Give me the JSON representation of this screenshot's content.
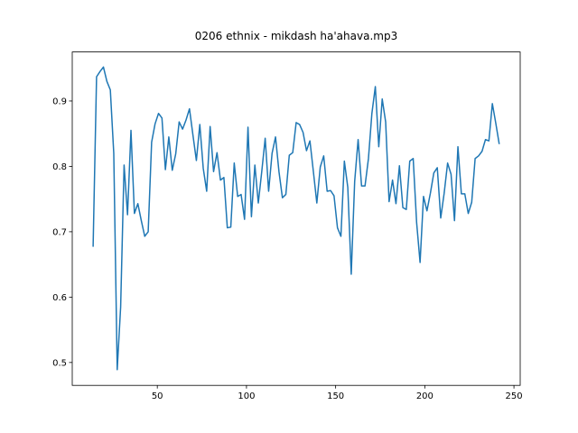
{
  "chart_data": {
    "type": "line",
    "title": "0206 ethnix - mikdash ha'ahava.mp3",
    "color": "#1f77b4",
    "x": [
      14,
      15.93,
      17.86,
      19.79,
      21.72,
      23.65,
      25.58,
      27.51,
      29.44,
      31.37,
      33.3,
      35.23,
      37.16,
      39.09,
      41.02,
      42.95,
      44.88,
      46.81,
      48.74,
      50.67,
      52.6,
      54.53,
      56.46,
      58.39,
      60.32,
      62.25,
      64.18,
      66.11,
      68.04,
      69.97,
      71.9,
      73.83,
      75.76,
      77.69,
      79.62,
      81.55,
      83.48,
      85.41,
      87.34,
      89.27,
      91.2,
      93.13,
      95.06,
      96.99,
      98.92,
      100.85,
      102.78,
      104.71,
      106.64,
      108.57,
      110.5,
      112.43,
      114.36,
      116.29,
      118.22,
      120.15,
      122.08,
      124.01,
      125.94,
      127.87,
      129.8,
      131.73,
      133.66,
      135.59,
      137.52,
      139.45,
      141.38,
      143.31,
      145.24,
      147.17,
      149.1,
      151.03,
      152.96,
      154.89,
      156.82,
      158.75,
      160.68,
      162.61,
      164.54,
      166.47,
      168.4,
      170.33,
      172.26,
      174.19,
      176.12,
      178.05,
      179.98,
      181.91,
      183.84,
      185.77,
      187.7,
      189.63,
      191.56,
      193.49,
      195.42,
      197.35,
      199.28,
      201.21,
      203.14,
      205.07,
      207,
      208.93,
      210.86,
      212.79,
      214.72,
      216.65,
      218.58,
      220.51,
      222.44,
      224.37,
      226.3,
      228.23,
      230.16,
      232.09,
      234.02,
      235.95,
      237.88,
      239.81,
      241.74
    ],
    "values": [
      0.677,
      0.937,
      0.945,
      0.952,
      0.93,
      0.917,
      0.82,
      0.489,
      0.585,
      0.802,
      0.726,
      0.855,
      0.728,
      0.743,
      0.717,
      0.693,
      0.7,
      0.837,
      0.865,
      0.881,
      0.874,
      0.795,
      0.845,
      0.794,
      0.819,
      0.868,
      0.857,
      0.871,
      0.888,
      0.848,
      0.809,
      0.864,
      0.797,
      0.762,
      0.861,
      0.792,
      0.821,
      0.779,
      0.783,
      0.706,
      0.707,
      0.805,
      0.754,
      0.757,
      0.719,
      0.86,
      0.723,
      0.802,
      0.744,
      0.792,
      0.843,
      0.762,
      0.82,
      0.845,
      0.792,
      0.752,
      0.757,
      0.817,
      0.821,
      0.867,
      0.864,
      0.852,
      0.824,
      0.839,
      0.792,
      0.744,
      0.799,
      0.816,
      0.762,
      0.763,
      0.755,
      0.706,
      0.693,
      0.808,
      0.768,
      0.635,
      0.777,
      0.841,
      0.77,
      0.77,
      0.812,
      0.881,
      0.922,
      0.83,
      0.903,
      0.868,
      0.746,
      0.779,
      0.743,
      0.801,
      0.737,
      0.734,
      0.808,
      0.812,
      0.714,
      0.653,
      0.754,
      0.732,
      0.759,
      0.79,
      0.798,
      0.721,
      0.759,
      0.805,
      0.788,
      0.717,
      0.83,
      0.758,
      0.758,
      0.728,
      0.745,
      0.812,
      0.816,
      0.823,
      0.841,
      0.839,
      0.896,
      0.866,
      0.834
    ],
    "xlim": [
      2.3,
      253.5
    ],
    "ylim": [
      0.465,
      0.975
    ],
    "xticks": [
      50,
      100,
      150,
      200,
      250
    ],
    "yticks": [
      0.5,
      0.6,
      0.7,
      0.8,
      0.9
    ]
  }
}
